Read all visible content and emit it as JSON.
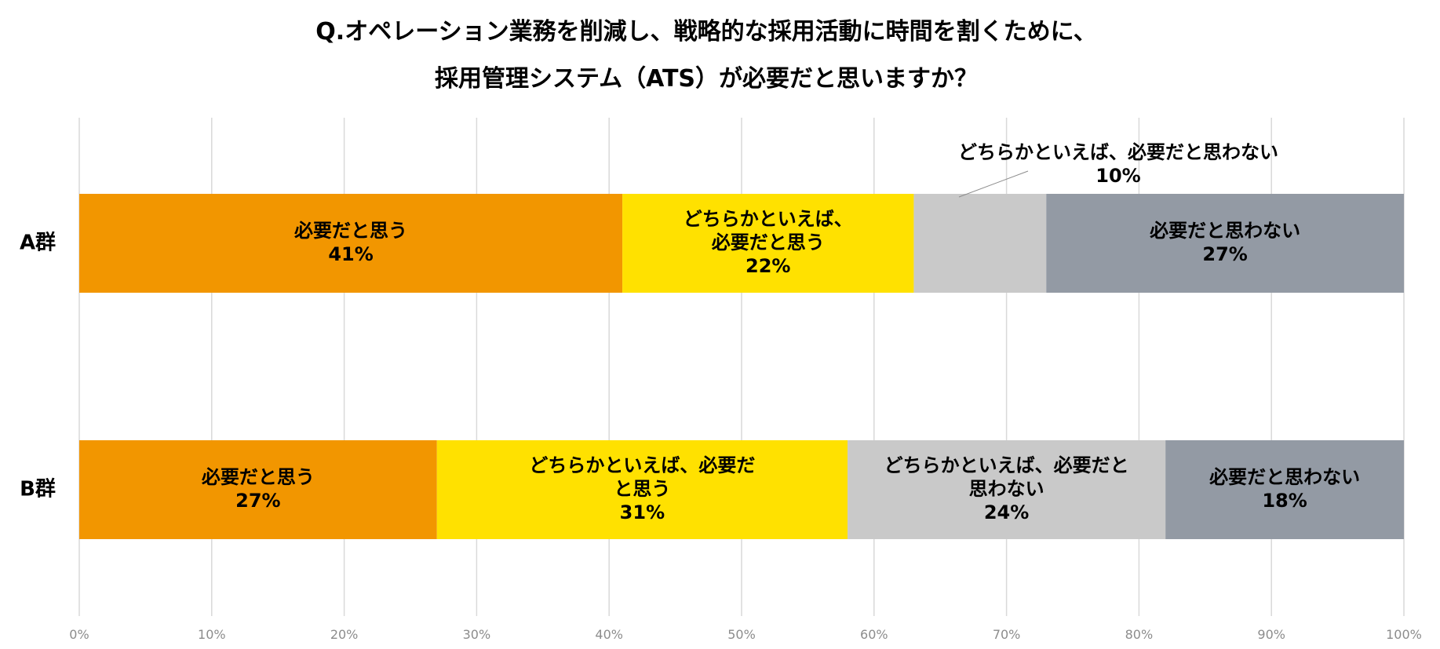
{
  "chart_data": {
    "type": "bar",
    "orientation": "horizontal",
    "stacked": true,
    "title": [
      "Q.オペレーション業務を削減し、戦略的な採用活動に時間を割くために、",
      "採用管理システム（ATS）が必要だと思いますか？"
    ],
    "categories": [
      "A群",
      "B群"
    ],
    "series": [
      {
        "key": "s1",
        "color": "#f29600",
        "values": [
          41,
          27
        ],
        "labels": [
          [
            "必要だと思う",
            "41%"
          ],
          [
            "必要だと思う",
            "27%"
          ]
        ]
      },
      {
        "key": "s2",
        "color": "#ffe100",
        "values": [
          22,
          31
        ],
        "labels": [
          [
            "どちらかといえば、",
            "必要だと思う",
            "22%"
          ],
          [
            "どちらかといえば、必要だ",
            "と思う",
            "31%"
          ]
        ]
      },
      {
        "key": "s3",
        "color": "#c9c9c9",
        "values": [
          10,
          24
        ],
        "labels": [
          [
            "どちらかといえば、必要だと思わない",
            "10%"
          ],
          [
            "どちらかといえば、必要だと",
            "思わない",
            "24%"
          ]
        ],
        "label_outside": [
          true,
          false
        ]
      },
      {
        "key": "s4",
        "color": "#939aa4",
        "values": [
          27,
          18
        ],
        "labels": [
          [
            "必要だと思わない",
            "27%"
          ],
          [
            "必要だと思わない",
            "18%"
          ]
        ]
      }
    ],
    "xlim": [
      0,
      100
    ],
    "x_ticks": [
      "0%",
      "10%",
      "20%",
      "30%",
      "40%",
      "50%",
      "60%",
      "70%",
      "80%",
      "90%",
      "100%"
    ],
    "grid": true,
    "legend": "none"
  }
}
